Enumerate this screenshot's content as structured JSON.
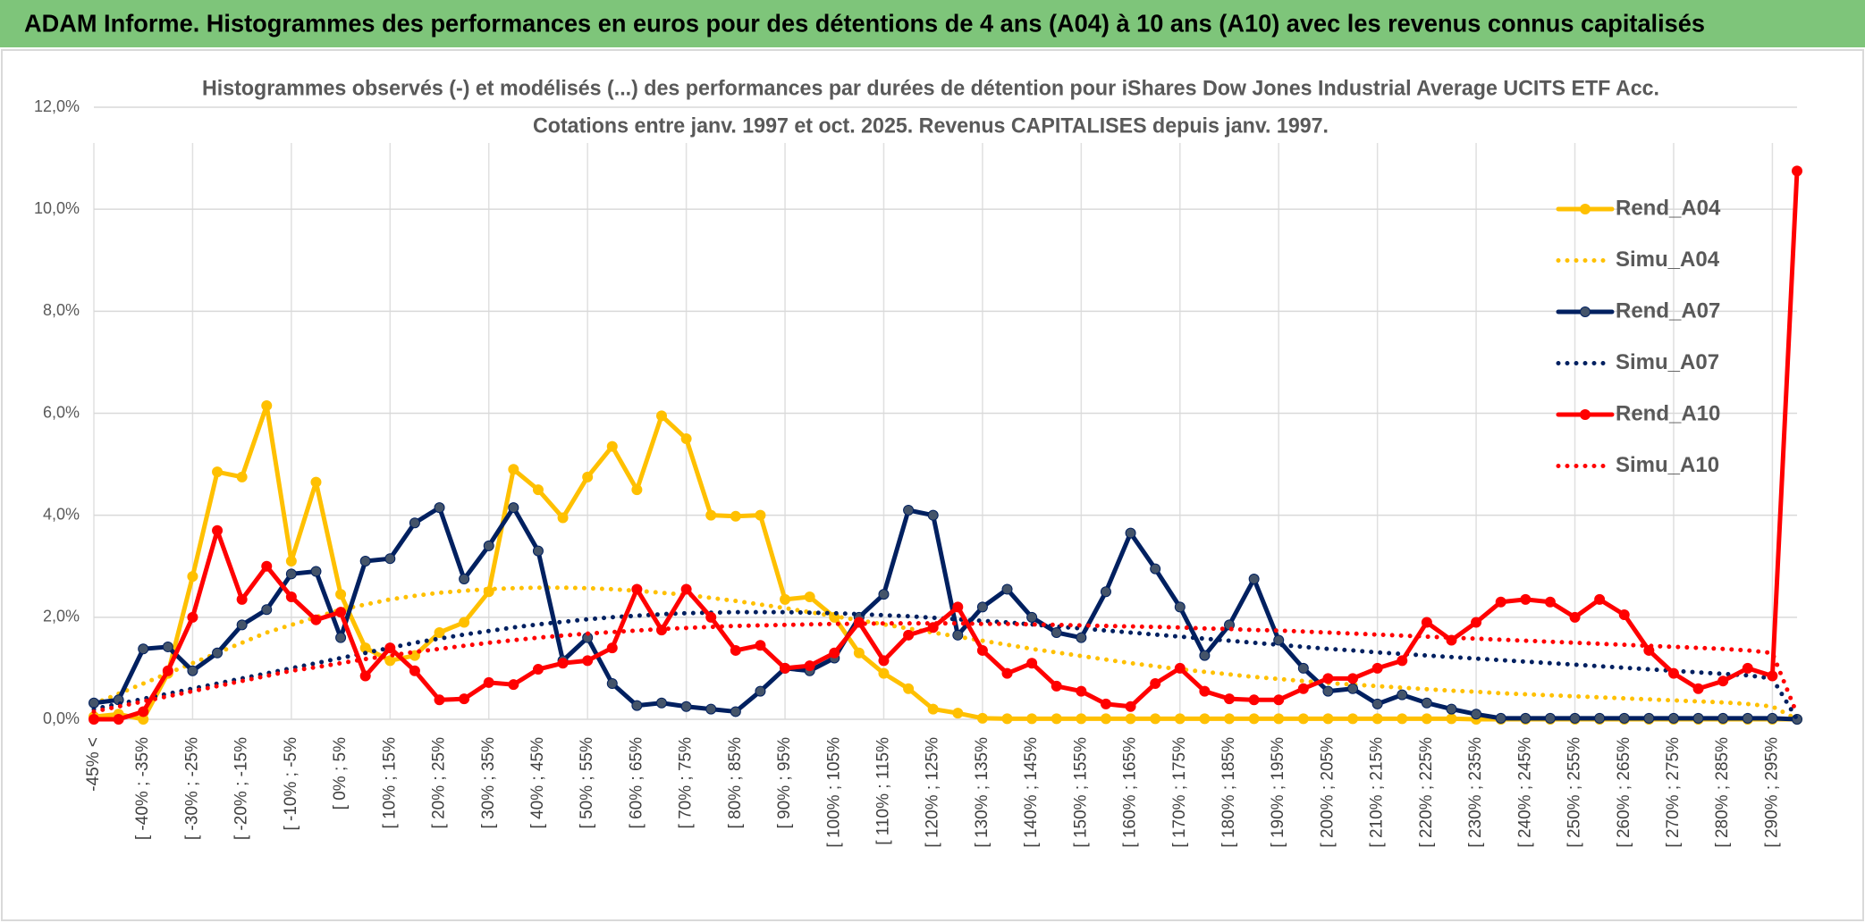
{
  "header": "ADAM Informe. Histogrammes des performances en euros pour des détentions de 4 ans (A04) à 10 ans (A10) avec les revenus connus capitalisés",
  "chart_data": {
    "type": "line",
    "title": "Histogrammes observés (-) et modélisés (...) des performances par durées de détention pour iShares Dow Jones Industrial Average UCITS ETF Acc.",
    "subtitle": "Cotations entre janv. 1997 et oct. 2025. Revenus CAPITALISES depuis janv. 1997.",
    "categories": [
      "-45% <",
      null,
      "[ -40% ; -35%",
      null,
      "[ -30% ; -25%",
      null,
      "[ -20% ; -15%",
      null,
      "[ -10% ; -5%",
      null,
      "[ 0% ; 5%",
      null,
      "[ 10% ; 15%",
      null,
      "[ 20% ; 25%",
      null,
      "[ 30% ; 35%",
      null,
      "[ 40% ; 45%",
      null,
      "[ 50% ; 55%",
      null,
      "[ 60% ; 65%",
      null,
      "[ 70% ; 75%",
      null,
      "[ 80% ; 85%",
      null,
      "[ 90% ; 95%",
      null,
      "[ 100% ; 105%",
      null,
      "[ 110% ; 115%",
      null,
      "[ 120% ; 125%",
      null,
      "[ 130% ; 135%",
      null,
      "[ 140% ; 145%",
      null,
      "[ 150% ; 155%",
      null,
      "[ 160% ; 165%",
      null,
      "[ 170% ; 175%",
      null,
      "[ 180% ; 185%",
      null,
      "[ 190% ; 195%",
      null,
      "[ 200% ; 205%",
      null,
      "[ 210% ; 215%",
      null,
      "[ 220% ; 225%",
      null,
      "[ 230% ; 235%",
      null,
      "[ 240% ; 245%",
      null,
      "[ 250% ; 255%",
      null,
      "[ 260% ; 265%",
      null,
      "[ 270% ; 275%",
      null,
      "[ 280% ; 285%",
      null,
      "[ 290% ; 295%",
      null
    ],
    "series": [
      {
        "name": "Rend_A04",
        "color": "#ffc000",
        "style": "solid",
        "markers": true,
        "values": [
          0.05,
          0.1,
          0.0,
          0.9,
          2.8,
          4.85,
          4.75,
          6.15,
          3.1,
          4.65,
          2.45,
          1.4,
          1.15,
          1.25,
          1.7,
          1.9,
          2.5,
          4.9,
          4.5,
          3.95,
          4.75,
          5.35,
          4.5,
          5.95,
          5.5,
          4.0,
          3.98,
          4.0,
          2.35,
          2.4,
          2.0,
          1.3,
          0.9,
          0.6,
          0.2,
          0.12,
          0.02,
          0.01,
          0.01,
          0.01,
          0.01,
          0.01,
          0.01,
          0.01,
          0.01,
          0.01,
          0.01,
          0.01,
          0.01,
          0.01,
          0.01,
          0.01,
          0.01,
          0.01,
          0.01,
          0.01,
          0.0,
          0,
          0,
          0,
          0,
          0,
          0,
          0,
          0,
          0,
          0,
          0,
          0,
          0
        ]
      },
      {
        "name": "Simu_A04",
        "color": "#ffc000",
        "style": "dotted",
        "markers": false,
        "values": [
          0.3,
          0.5,
          0.7,
          0.9,
          1.1,
          1.3,
          1.5,
          1.7,
          1.85,
          2.0,
          2.15,
          2.25,
          2.35,
          2.42,
          2.48,
          2.52,
          2.55,
          2.57,
          2.58,
          2.58,
          2.57,
          2.55,
          2.52,
          2.48,
          2.44,
          2.38,
          2.32,
          2.25,
          2.18,
          2.1,
          2.02,
          1.94,
          1.86,
          1.78,
          1.7,
          1.62,
          1.54,
          1.46,
          1.38,
          1.31,
          1.24,
          1.17,
          1.1,
          1.04,
          0.98,
          0.93,
          0.88,
          0.83,
          0.79,
          0.75,
          0.71,
          0.68,
          0.65,
          0.62,
          0.59,
          0.56,
          0.54,
          0.51,
          0.49,
          0.47,
          0.45,
          0.43,
          0.41,
          0.39,
          0.37,
          0.35,
          0.33,
          0.3,
          0.25,
          0.0
        ]
      },
      {
        "name": "Rend_A07",
        "color": "#002060",
        "style": "solid",
        "markers": true,
        "marker_color": "#44546a",
        "values": [
          0.32,
          0.38,
          1.38,
          1.42,
          0.95,
          1.3,
          1.85,
          2.15,
          2.85,
          2.9,
          1.6,
          3.1,
          3.15,
          3.85,
          4.15,
          2.75,
          3.4,
          4.15,
          3.3,
          1.15,
          1.6,
          0.7,
          0.27,
          0.32,
          0.25,
          0.2,
          0.15,
          0.55,
          1.0,
          0.95,
          1.2,
          2.0,
          2.45,
          4.1,
          4.0,
          1.65,
          2.2,
          2.55,
          2.0,
          1.7,
          1.6,
          2.5,
          3.65,
          2.95,
          2.2,
          1.25,
          1.85,
          2.75,
          1.55,
          1.0,
          0.55,
          0.6,
          0.3,
          0.48,
          0.32,
          0.2,
          0.1,
          0.02,
          0.02,
          0.02,
          0.02,
          0.02,
          0.02,
          0.02,
          0.02,
          0.02,
          0.02,
          0.02,
          0.02,
          0.0
        ]
      },
      {
        "name": "Simu_A07",
        "color": "#002060",
        "style": "dotted",
        "markers": false,
        "values": [
          0.2,
          0.3,
          0.4,
          0.5,
          0.6,
          0.7,
          0.8,
          0.9,
          1.0,
          1.1,
          1.2,
          1.3,
          1.4,
          1.5,
          1.58,
          1.66,
          1.73,
          1.8,
          1.86,
          1.91,
          1.96,
          2.0,
          2.03,
          2.06,
          2.08,
          2.09,
          2.1,
          2.1,
          2.1,
          2.09,
          2.08,
          2.06,
          2.04,
          2.02,
          1.99,
          1.96,
          1.93,
          1.9,
          1.86,
          1.82,
          1.78,
          1.74,
          1.7,
          1.66,
          1.62,
          1.58,
          1.54,
          1.5,
          1.46,
          1.42,
          1.38,
          1.35,
          1.31,
          1.28,
          1.25,
          1.22,
          1.19,
          1.16,
          1.13,
          1.1,
          1.07,
          1.04,
          1.01,
          0.98,
          0.95,
          0.92,
          0.89,
          0.86,
          0.8,
          0.0
        ]
      },
      {
        "name": "Rend_A10",
        "color": "#ff0000",
        "style": "solid",
        "markers": true,
        "values": [
          0.0,
          0.0,
          0.15,
          0.95,
          2.0,
          3.7,
          2.35,
          3.0,
          2.4,
          1.95,
          2.1,
          0.85,
          1.4,
          0.95,
          0.38,
          0.4,
          0.72,
          0.68,
          0.98,
          1.1,
          1.15,
          1.4,
          2.55,
          1.75,
          2.55,
          2.0,
          1.35,
          1.45,
          1.0,
          1.05,
          1.3,
          1.9,
          1.15,
          1.65,
          1.8,
          2.2,
          1.35,
          0.9,
          1.1,
          0.65,
          0.55,
          0.3,
          0.25,
          0.7,
          1.0,
          0.55,
          0.4,
          0.38,
          0.38,
          0.6,
          0.8,
          0.8,
          1.0,
          1.15,
          1.9,
          1.55,
          1.9,
          2.3,
          2.35,
          2.3,
          2.0,
          2.35,
          2.05,
          1.35,
          0.9,
          0.6,
          0.75,
          1.0,
          0.85,
          10.75
        ]
      },
      {
        "name": "Simu_A10",
        "color": "#ff0000",
        "style": "dotted",
        "markers": false,
        "values": [
          0.15,
          0.25,
          0.35,
          0.45,
          0.55,
          0.65,
          0.75,
          0.85,
          0.95,
          1.02,
          1.1,
          1.18,
          1.25,
          1.32,
          1.38,
          1.44,
          1.5,
          1.55,
          1.6,
          1.64,
          1.68,
          1.71,
          1.74,
          1.77,
          1.79,
          1.81,
          1.83,
          1.84,
          1.85,
          1.86,
          1.87,
          1.87,
          1.88,
          1.88,
          1.88,
          1.88,
          1.87,
          1.87,
          1.86,
          1.85,
          1.84,
          1.83,
          1.82,
          1.81,
          1.8,
          1.78,
          1.77,
          1.75,
          1.74,
          1.72,
          1.7,
          1.68,
          1.66,
          1.64,
          1.62,
          1.6,
          1.58,
          1.56,
          1.54,
          1.52,
          1.5,
          1.48,
          1.46,
          1.44,
          1.42,
          1.4,
          1.38,
          1.35,
          1.3,
          0.1
        ]
      }
    ],
    "ylim": [
      0,
      12
    ],
    "yticks": [
      {
        "value": 0,
        "label": "0,0%"
      },
      {
        "value": 2,
        "label": "2,0%"
      },
      {
        "value": 4,
        "label": "4,0%"
      },
      {
        "value": 6,
        "label": "6,0%"
      },
      {
        "value": 8,
        "label": "8,0%"
      },
      {
        "value": 10,
        "label": "10,0%"
      },
      {
        "value": 12,
        "label": "12,0%"
      }
    ],
    "grid": true,
    "legend": "top-right"
  }
}
